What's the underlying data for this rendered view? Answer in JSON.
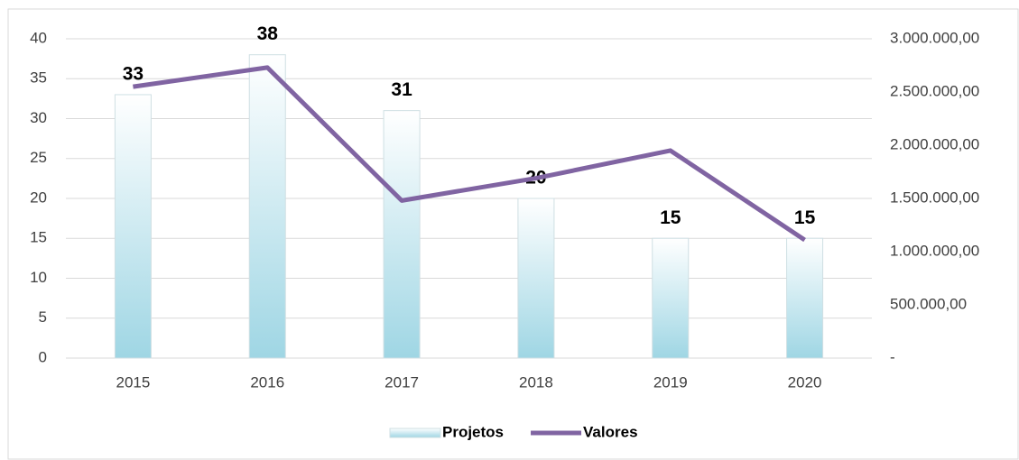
{
  "chart_data": {
    "type": "bar",
    "categories": [
      "2015",
      "2016",
      "2017",
      "2018",
      "2019",
      "2020"
    ],
    "series": [
      {
        "name": "Projetos",
        "type": "bar",
        "color": "#9fd6e4",
        "values": [
          33,
          38,
          31,
          20,
          15,
          15
        ]
      },
      {
        "name": "Valores",
        "type": "line",
        "axis": "y2",
        "color": "#8064a2",
        "values": [
          2550000,
          2730000,
          1480000,
          1690000,
          1950000,
          1110000
        ]
      }
    ],
    "ylim": [
      0,
      40
    ],
    "yticks": [
      0,
      5,
      10,
      15,
      20,
      25,
      30,
      35,
      40
    ],
    "y2lim": [
      0,
      3000000
    ],
    "y2ticks": [
      {
        "value": 0,
        "label": "-"
      },
      {
        "value": 500000,
        "label": "500.000,00"
      },
      {
        "value": 1000000,
        "label": "1.000.000,00"
      },
      {
        "value": 1500000,
        "label": "1.500.000,00"
      },
      {
        "value": 2000000,
        "label": "2.000.000,00"
      },
      {
        "value": 2500000,
        "label": "2.500.000,00"
      },
      {
        "value": 3000000,
        "label": "3.000.000,00"
      }
    ],
    "grid": true,
    "legend": "bottom"
  }
}
